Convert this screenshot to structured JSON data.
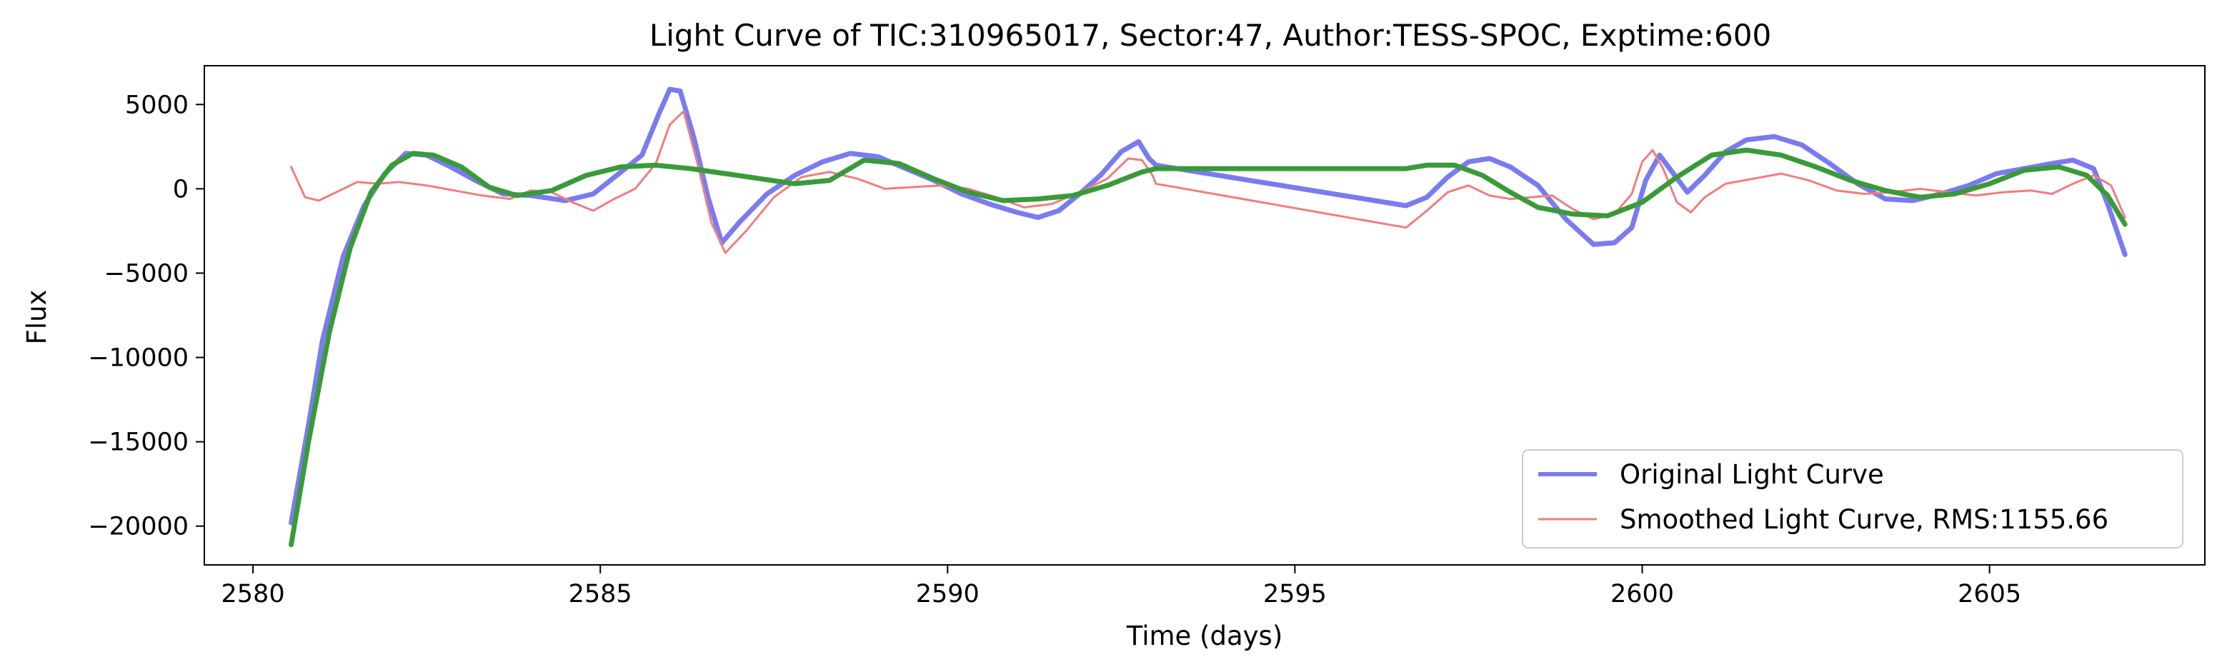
{
  "chart_data": {
    "type": "line",
    "title": "Light Curve of TIC:310965017, Sector:47, Author:TESS-SPOC, Exptime:600",
    "xlabel": "Time (days)",
    "ylabel": "Flux",
    "xlim": [
      2579.3,
      2608.1
    ],
    "ylim": [
      -22300,
      7300
    ],
    "x_ticks": [
      2580,
      2585,
      2590,
      2595,
      2600,
      2605
    ],
    "y_ticks": [
      5000,
      0,
      -5000,
      -10000,
      -15000,
      -20000
    ],
    "y_tick_labels": [
      "5000",
      "0",
      "−5000",
      "−10000",
      "−15000",
      "−20000"
    ],
    "grid": false,
    "legend_position": "lower-right",
    "series": [
      {
        "name": "Original Light Curve",
        "color": "#7b7bf0",
        "x": [
          2580.55,
          2580.8,
          2581.0,
          2581.3,
          2581.6,
          2581.9,
          2582.2,
          2582.5,
          2582.8,
          2583.2,
          2583.6,
          2584.0,
          2584.5,
          2584.9,
          2585.3,
          2585.6,
          2585.85,
          2586.0,
          2586.15,
          2586.35,
          2586.55,
          2586.75,
          2587.0,
          2587.4,
          2587.8,
          2588.2,
          2588.6,
          2589.0,
          2589.4,
          2589.8,
          2590.2,
          2590.6,
          2591.0,
          2591.3,
          2591.6,
          2591.9,
          2592.2,
          2592.5,
          2592.75,
          2592.9,
          2593.0,
          2596.6,
          2596.9,
          2597.2,
          2597.5,
          2597.8,
          2598.1,
          2598.5,
          2598.9,
          2599.3,
          2599.6,
          2599.85,
          2600.05,
          2600.25,
          2600.45,
          2600.65,
          2600.9,
          2601.2,
          2601.5,
          2601.9,
          2602.3,
          2602.7,
          2603.1,
          2603.5,
          2603.9,
          2604.3,
          2604.7,
          2605.1,
          2605.5,
          2605.9,
          2606.2,
          2606.5,
          2606.7,
          2606.95
        ],
        "y": [
          -19800,
          -14000,
          -9000,
          -4000,
          -1000,
          900,
          2100,
          2000,
          1400,
          500,
          -300,
          -400,
          -700,
          -300,
          1000,
          2000,
          4500,
          5900,
          5800,
          3000,
          -500,
          -3200,
          -2000,
          -300,
          800,
          1600,
          2100,
          1900,
          1200,
          500,
          -300,
          -900,
          -1400,
          -1700,
          -1300,
          -300,
          800,
          2200,
          2800,
          1800,
          1400,
          -1000,
          -500,
          700,
          1600,
          1800,
          1300,
          200,
          -1800,
          -3300,
          -3200,
          -2300,
          500,
          2000,
          900,
          -200,
          800,
          2200,
          2900,
          3100,
          2600,
          1500,
          300,
          -600,
          -700,
          -300,
          200,
          900,
          1200,
          1500,
          1700,
          1200,
          -900,
          -3900
        ]
      },
      {
        "name": "Smoothed Light Curve, RMS:1155.66",
        "color": "#f07e7e",
        "x": [
          2580.55,
          2580.75,
          2580.95,
          2581.2,
          2581.5,
          2581.8,
          2582.1,
          2582.5,
          2582.9,
          2583.3,
          2583.7,
          2584.0,
          2584.3,
          2584.6,
          2584.9,
          2585.2,
          2585.5,
          2585.8,
          2586.0,
          2586.2,
          2586.4,
          2586.6,
          2586.8,
          2587.1,
          2587.5,
          2587.9,
          2588.3,
          2588.7,
          2589.1,
          2589.5,
          2589.9,
          2590.3,
          2590.7,
          2591.1,
          2591.5,
          2591.9,
          2592.3,
          2592.6,
          2592.8,
          2592.95,
          2593.0,
          2596.6,
          2596.9,
          2597.2,
          2597.5,
          2597.8,
          2598.1,
          2598.4,
          2598.7,
          2599.0,
          2599.3,
          2599.6,
          2599.85,
          2600.0,
          2600.15,
          2600.3,
          2600.5,
          2600.7,
          2600.9,
          2601.2,
          2601.6,
          2602.0,
          2602.4,
          2602.8,
          2603.2,
          2603.6,
          2604.0,
          2604.4,
          2604.8,
          2605.2,
          2605.6,
          2605.9,
          2606.2,
          2606.5,
          2606.75,
          2606.95
        ],
        "y": [
          1300,
          -500,
          -700,
          -200,
          400,
          300,
          400,
          200,
          -100,
          -400,
          -600,
          -100,
          -200,
          -800,
          -1300,
          -600,
          0,
          1500,
          3800,
          4600,
          1500,
          -2000,
          -3800,
          -2500,
          -500,
          700,
          1000,
          600,
          0,
          100,
          200,
          0,
          -500,
          -1100,
          -900,
          -200,
          600,
          1800,
          1700,
          800,
          300,
          -2300,
          -1300,
          -200,
          200,
          -400,
          -600,
          -500,
          -400,
          -1200,
          -1800,
          -1500,
          -300,
          1600,
          2300,
          1200,
          -800,
          -1400,
          -500,
          300,
          600,
          900,
          500,
          -100,
          -300,
          -200,
          0,
          -200,
          -400,
          -200,
          -100,
          -300,
          300,
          800,
          200,
          -1700
        ]
      },
      {
        "name": "",
        "color": "#3a9a3a",
        "x": [
          2580.55,
          2580.8,
          2581.1,
          2581.4,
          2581.7,
          2582.0,
          2582.3,
          2582.6,
          2583.0,
          2583.4,
          2583.8,
          2584.3,
          2584.8,
          2585.3,
          2585.8,
          2586.3,
          2586.8,
          2587.3,
          2587.8,
          2588.3,
          2588.8,
          2589.3,
          2589.8,
          2590.3,
          2590.8,
          2591.3,
          2591.8,
          2592.3,
          2592.8,
          2593.0,
          2596.6,
          2596.9,
          2597.3,
          2597.7,
          2598.1,
          2598.5,
          2599.0,
          2599.5,
          2600.0,
          2600.5,
          2601.0,
          2601.5,
          2602.0,
          2602.5,
          2603.0,
          2603.5,
          2604.0,
          2604.5,
          2605.0,
          2605.5,
          2606.0,
          2606.4,
          2606.7,
          2606.95
        ],
        "y": [
          -21100,
          -15000,
          -8500,
          -3500,
          -200,
          1400,
          2100,
          2000,
          1300,
          100,
          -400,
          -100,
          800,
          1300,
          1400,
          1200,
          900,
          600,
          300,
          500,
          1700,
          1500,
          600,
          -200,
          -700,
          -600,
          -400,
          200,
          1000,
          1200,
          1200,
          1400,
          1400,
          800,
          -200,
          -1100,
          -1500,
          -1600,
          -800,
          700,
          2000,
          2300,
          2000,
          1300,
          500,
          -100,
          -500,
          -300,
          300,
          1100,
          1300,
          800,
          -400,
          -2100
        ]
      }
    ]
  }
}
